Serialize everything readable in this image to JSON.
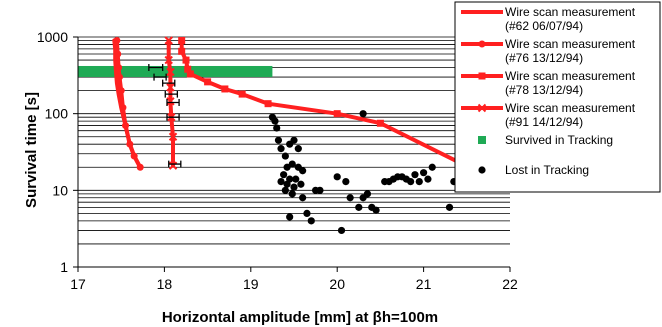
{
  "chart_data": {
    "type": "scatter",
    "title": "",
    "xlabel": "Horizontal amplitude [mm] at βh=100m",
    "ylabel": "Survival time [s]",
    "x_scale": "linear",
    "y_scale": "log",
    "xlim": [
      17,
      22
    ],
    "ylim": [
      1,
      1000
    ],
    "x_ticks": [
      "17",
      "18",
      "19",
      "20",
      "21",
      "22"
    ],
    "y_ticks": [
      "1",
      "10",
      "100",
      "1000"
    ],
    "grid": "horizontal",
    "legend_position": "right",
    "series": [
      {
        "name": "Wire scan measurement (#62 06/07/94)",
        "legend_lines": [
          "Wire scan measurement",
          "(#62 06/07/94)"
        ],
        "type": "line",
        "color": "#ff2020",
        "marker": "none",
        "points": [
          [
            17.42,
            900
          ],
          [
            17.43,
            700
          ],
          [
            17.43,
            500
          ],
          [
            17.44,
            350
          ],
          [
            17.45,
            250
          ],
          [
            17.47,
            180
          ],
          [
            17.5,
            120
          ],
          [
            17.55,
            70
          ],
          [
            17.6,
            40
          ],
          [
            17.65,
            28
          ],
          [
            17.72,
            20
          ]
        ]
      },
      {
        "name": "Wire scan measurement (#76 13/12/94)",
        "legend_lines": [
          "Wire scan measurement",
          "(#76 13/12/94)"
        ],
        "type": "line",
        "color": "#ff2020",
        "marker": "circle",
        "points": [
          [
            17.45,
            900
          ],
          [
            17.46,
            600
          ],
          [
            17.47,
            400
          ],
          [
            17.48,
            300
          ],
          [
            17.5,
            200
          ],
          [
            17.52,
            120
          ],
          [
            17.55,
            70
          ],
          [
            17.6,
            40
          ],
          [
            17.65,
            28
          ],
          [
            17.72,
            20
          ]
        ]
      },
      {
        "name": "Wire scan measurement (#78 13/12/94)",
        "legend_lines": [
          "Wire scan measurement",
          "(#78 13/12/94)"
        ],
        "type": "line",
        "color": "#ff2020",
        "marker": "square",
        "points": [
          [
            18.2,
            900
          ],
          [
            18.2,
            650
          ],
          [
            18.25,
            500
          ],
          [
            18.27,
            380
          ],
          [
            18.3,
            330
          ],
          [
            18.5,
            260
          ],
          [
            18.7,
            210
          ],
          [
            18.9,
            180
          ],
          [
            19.2,
            135
          ],
          [
            20,
            100
          ],
          [
            20.5,
            75
          ],
          [
            21.45,
            22
          ]
        ]
      },
      {
        "name": "Wire scan measurement (#91 14/12/94)",
        "legend_lines": [
          "Wire scan measurement",
          "(#91 14/12/94)"
        ],
        "type": "line",
        "color": "#ff2020",
        "marker": "x",
        "points": [
          [
            18.05,
            900
          ],
          [
            18.05,
            500
          ],
          [
            18.07,
            350
          ],
          [
            18.07,
            220
          ],
          [
            18.07,
            145
          ],
          [
            18.08,
            90
          ],
          [
            18.1,
            50
          ],
          [
            18.1,
            21
          ]
        ]
      },
      {
        "name": "Survived in Tracking",
        "legend_lines": [
          "Survived in Tracking"
        ],
        "type": "bar_h",
        "color": "#1faa55",
        "x_range": [
          17,
          19.25
        ],
        "y": 355
      },
      {
        "name": "Lost in Tracking",
        "legend_lines": [
          "Lost in Tracking"
        ],
        "type": "scatter",
        "color": "#000000",
        "marker": "circle",
        "points": [
          [
            19.25,
            90
          ],
          [
            19.3,
            65
          ],
          [
            19.28,
            80
          ],
          [
            19.32,
            45
          ],
          [
            19.35,
            35
          ],
          [
            19.4,
            28
          ],
          [
            19.45,
            40
          ],
          [
            19.5,
            45
          ],
          [
            19.55,
            35
          ],
          [
            19.42,
            20
          ],
          [
            19.48,
            22
          ],
          [
            19.55,
            20
          ],
          [
            19.6,
            18
          ],
          [
            19.38,
            16
          ],
          [
            19.45,
            14
          ],
          [
            19.52,
            14
          ],
          [
            19.35,
            13
          ],
          [
            19.42,
            12
          ],
          [
            19.5,
            11
          ],
          [
            19.58,
            12
          ],
          [
            19.4,
            10
          ],
          [
            19.48,
            9
          ],
          [
            19.6,
            8
          ],
          [
            19.65,
            5
          ],
          [
            19.7,
            4
          ],
          [
            19.45,
            4.5
          ],
          [
            19.75,
            10
          ],
          [
            19.8,
            10
          ],
          [
            20.05,
            3
          ],
          [
            20.0,
            15
          ],
          [
            20.1,
            13
          ],
          [
            20.15,
            8
          ],
          [
            20.25,
            6
          ],
          [
            20.3,
            8
          ],
          [
            20.35,
            9
          ],
          [
            20.4,
            6
          ],
          [
            20.45,
            5.5
          ],
          [
            20.3,
            100
          ],
          [
            20.55,
            13
          ],
          [
            20.6,
            13
          ],
          [
            20.65,
            14
          ],
          [
            20.7,
            15
          ],
          [
            20.75,
            15
          ],
          [
            20.8,
            14
          ],
          [
            20.85,
            13
          ],
          [
            20.9,
            16
          ],
          [
            20.95,
            13
          ],
          [
            21.0,
            17
          ],
          [
            21.05,
            14
          ],
          [
            21.1,
            20
          ],
          [
            21.3,
            6
          ],
          [
            21.35,
            13
          ],
          [
            21.5,
            12
          ],
          [
            21.55,
            12
          ]
        ]
      }
    ],
    "error_bars": {
      "color": "#000000",
      "points": [
        [
          17.9,
          400,
          0.08
        ],
        [
          17.95,
          300,
          0.07
        ],
        [
          18.05,
          250,
          0.07
        ],
        [
          18.08,
          180,
          0.07
        ],
        [
          18.1,
          140,
          0.07
        ],
        [
          18.1,
          90,
          0.07
        ],
        [
          18.12,
          22,
          0.07
        ]
      ]
    }
  }
}
